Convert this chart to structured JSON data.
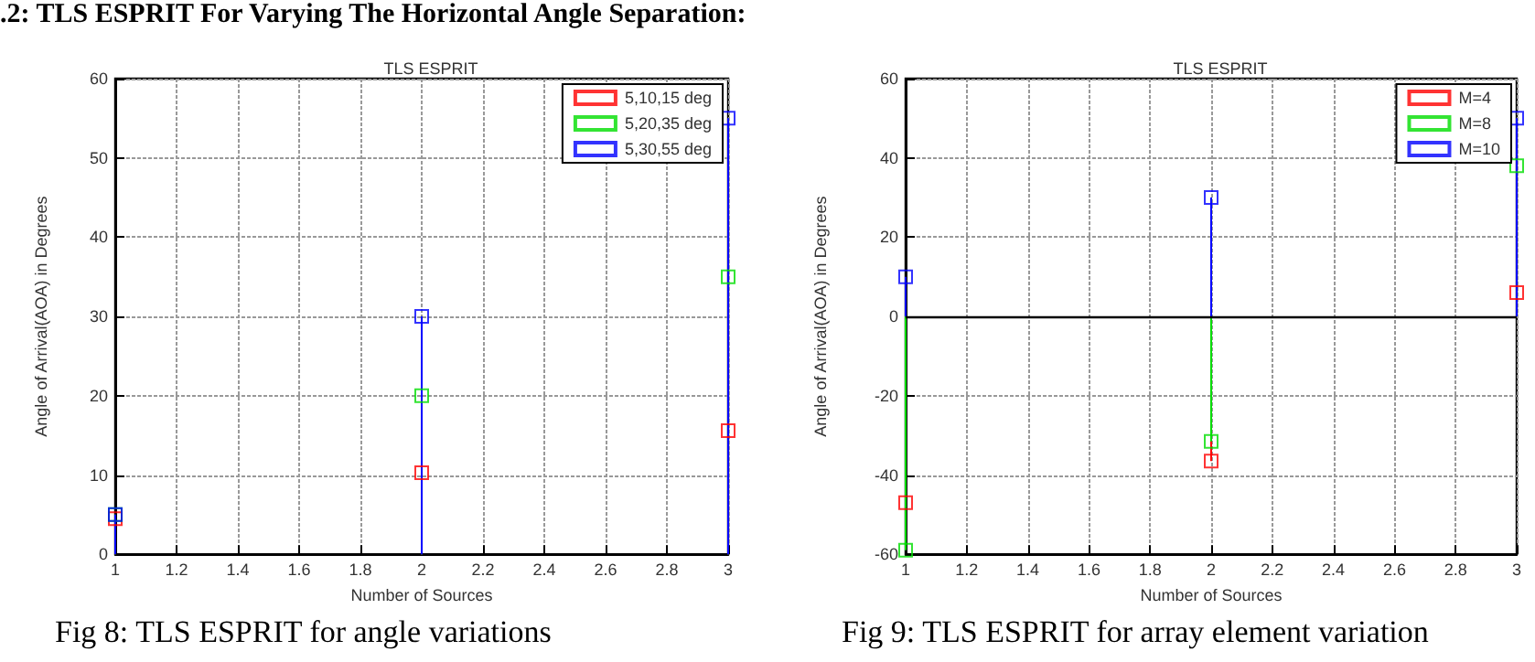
{
  "chart_data": [
    {
      "type": "lollipop",
      "title": "TLS ESPRIT",
      "xlabel": "Number of Sources",
      "ylabel": "Angle of Arrival(AOA) in Degrees",
      "annotations": [
        ".2: TLS ESPRIT For Varying The Horizontal Angle Separation:",
        "Fig 8: TLS ESPRIT for angle variations"
      ],
      "x": [
        1,
        2,
        3
      ],
      "series": [
        {
          "name": "5,10,15 deg",
          "color": "#ff0000",
          "values": [
            4.5,
            10.3,
            15.6
          ]
        },
        {
          "name": "5,20,35 deg",
          "color": "#00dd00",
          "values": [
            5,
            20,
            35
          ]
        },
        {
          "name": "5,30,55 deg",
          "color": "#0000ff",
          "values": [
            5,
            30,
            55
          ]
        }
      ],
      "xlim": [
        1,
        3
      ],
      "xticks": [
        1,
        1.2,
        1.4,
        1.6,
        1.8,
        2,
        2.2,
        2.4,
        2.6,
        2.8,
        3
      ],
      "ylim": [
        0,
        60
      ],
      "yticks": [
        0,
        10,
        20,
        30,
        40,
        50,
        60
      ],
      "grid": true,
      "legend": "top right",
      "marker": "square"
    },
    {
      "type": "lollipop",
      "title": "TLS ESPRIT",
      "xlabel": "Number of Sources",
      "ylabel": "Angle of Arrival(AOA) in Degrees",
      "annotations": [
        "Fig 9: TLS ESPRIT for array element variation"
      ],
      "x": [
        1,
        2,
        3
      ],
      "series": [
        {
          "name": "M=4",
          "color": "#ff0000",
          "values": [
            -47,
            -36.5,
            6
          ]
        },
        {
          "name": "M=8",
          "color": "#00dd00",
          "values": [
            -59,
            -31.5,
            38
          ]
        },
        {
          "name": "M=10",
          "color": "#0000ff",
          "values": [
            10,
            30,
            50
          ]
        }
      ],
      "xlim": [
        1,
        3
      ],
      "xticks": [
        1,
        1.2,
        1.4,
        1.6,
        1.8,
        2,
        2.2,
        2.4,
        2.6,
        2.8,
        3
      ],
      "ylim": [
        -60,
        60
      ],
      "yticks": [
        -60,
        -40,
        -20,
        0,
        20,
        40,
        60
      ],
      "ref_lines": [
        {
          "axis": "y",
          "value": 0,
          "color": "#000000"
        }
      ],
      "grid": true,
      "legend": "top right",
      "marker": "square"
    }
  ]
}
